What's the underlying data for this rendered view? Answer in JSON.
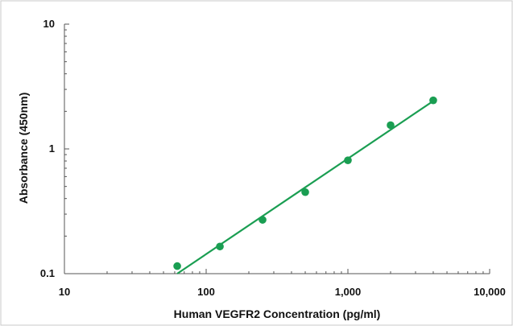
{
  "chart_data": {
    "type": "scatter",
    "title": "",
    "xlabel": "Human VEGFR2 Concentration (pg/ml)",
    "ylabel": "Absorbance (450nm)",
    "xscale": "log",
    "yscale": "log",
    "xlim": [
      10,
      10000
    ],
    "ylim": [
      0.1,
      10
    ],
    "x_ticks": [
      10,
      100,
      1000,
      10000
    ],
    "x_tick_labels": [
      "10",
      "100",
      "1,000",
      "10,000"
    ],
    "y_ticks": [
      0.1,
      1,
      10
    ],
    "y_tick_labels": [
      "0.1",
      "1",
      "10"
    ],
    "grid": false,
    "legend": "none",
    "series": [
      {
        "color": "#1a9e52",
        "points": [
          {
            "x": 62.5,
            "y": 0.115
          },
          {
            "x": 125,
            "y": 0.165
          },
          {
            "x": 250,
            "y": 0.27
          },
          {
            "x": 500,
            "y": 0.45
          },
          {
            "x": 1000,
            "y": 0.81
          },
          {
            "x": 2000,
            "y": 1.55
          },
          {
            "x": 4000,
            "y": 2.45
          }
        ]
      }
    ],
    "fit_line": {
      "type": "linear-log-log",
      "color": "#1a9e52",
      "from": {
        "x": 62.5,
        "y": 0.1
      },
      "to": {
        "x": 4000,
        "y": 2.42
      }
    }
  }
}
